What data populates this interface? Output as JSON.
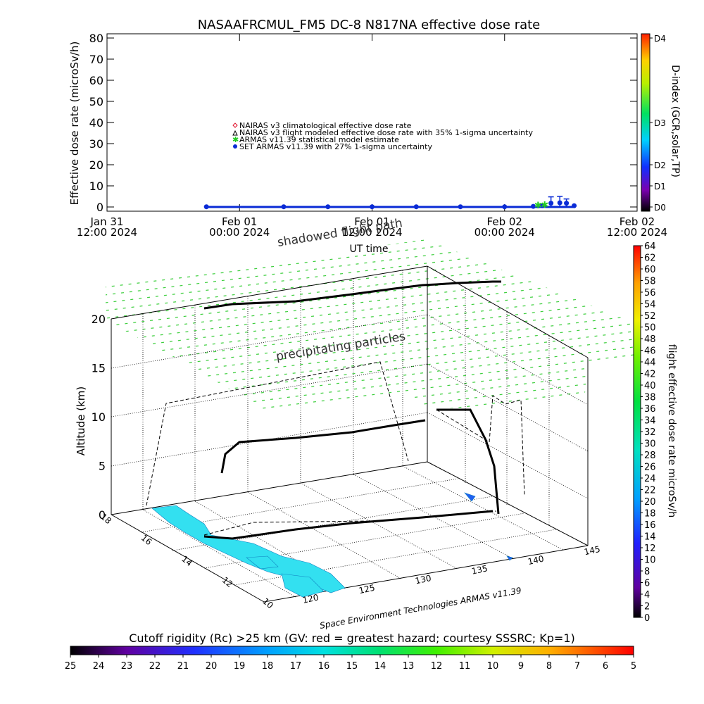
{
  "title": "NASAAFRCMUL_FM5 DC-8   N817NA effective dose rate",
  "chart_data": [
    {
      "type": "scatter",
      "panel": "time-series",
      "ylabel": "Effective dose rate (microSv/h)",
      "xlabel": "UT time",
      "ylim": [
        -2,
        82
      ],
      "yticks": [
        0,
        10,
        20,
        30,
        40,
        50,
        60,
        70,
        80
      ],
      "xticks": [
        {
          "line1": "Jan 31",
          "line2": "12:00 2024"
        },
        {
          "line1": "Feb 01",
          "line2": "00:00 2024"
        },
        {
          "line1": "Feb 01",
          "line2": "12:00 2024"
        },
        {
          "line1": "Feb 02",
          "line2": "00:00 2024"
        },
        {
          "line1": "Feb 02",
          "line2": "12:00 2024"
        }
      ],
      "xrange_hours": [
        0,
        48
      ],
      "grid": false,
      "legend": [
        {
          "label": "NAIRAS v3 climatological effective dose rate",
          "color": "#e0102a",
          "marker": "diamond"
        },
        {
          "label": "NAIRAS v3 flight modeled effective dose rate with 35% 1-sigma uncertainty",
          "color": "#000000",
          "marker": "triangle"
        },
        {
          "label": "ARMAS v11.39 statistical model estimate",
          "color": "#22cc22",
          "marker": "asterisk"
        },
        {
          "label": "SET ARMAS v11.39 with 27% 1-sigma uncertainty",
          "color": "#0a2bd6",
          "marker": "circle"
        }
      ],
      "series": [
        {
          "name": "SET ARMAS v11.39 with 27% 1-sigma uncertainty",
          "x_hours": [
            9,
            16,
            20,
            24,
            28,
            32,
            36,
            38.6,
            39.4,
            40.2,
            41.0,
            41.6,
            42.3
          ],
          "y": [
            0.1,
            0.1,
            0.1,
            0.1,
            0.1,
            0.1,
            0.1,
            0.3,
            0.6,
            1.8,
            2.0,
            1.8,
            0.6
          ],
          "yerr": [
            0.05,
            0.05,
            0.05,
            0.05,
            0.05,
            0.05,
            0.05,
            0.2,
            0.3,
            3.0,
            3.0,
            2.0,
            0.5
          ]
        },
        {
          "name": "ARMAS v11.39 statistical model estimate",
          "x_hours": [
            39.0,
            39.6
          ],
          "y": [
            1.0,
            1.2
          ]
        }
      ],
      "right_axis": {
        "label": "D-index (GCR,solar,TP)",
        "ticks": [
          {
            "label": "D0",
            "value": 0
          },
          {
            "label": "D1",
            "value": 10
          },
          {
            "label": "D2",
            "value": 20
          },
          {
            "label": "D3",
            "value": 40
          },
          {
            "label": "D4",
            "value": 80
          }
        ]
      }
    },
    {
      "type": "scatter",
      "panel": "3d-flight-path",
      "zlabel": "Altitude (km)",
      "zticks": [
        0,
        5,
        10,
        15,
        20
      ],
      "lat_ticks": [
        10,
        12,
        14,
        16,
        18
      ],
      "lon_ticks": [
        120,
        125,
        130,
        135,
        140,
        145
      ],
      "annotations": [
        "shadowed flight path",
        "precipitating particles"
      ],
      "colorbar": {
        "label": "flight effective dose rate microSv/h",
        "min": 0,
        "max": 64,
        "ticks": [
          0,
          2,
          4,
          6,
          8,
          10,
          12,
          14,
          16,
          18,
          20,
          22,
          24,
          26,
          28,
          30,
          32,
          34,
          36,
          38,
          40,
          42,
          44,
          46,
          48,
          50,
          52,
          54,
          56,
          58,
          60,
          62,
          64
        ]
      },
      "credit": "Space Environment Technologies ARMAS v11.39"
    },
    {
      "type": "heatmap",
      "panel": "cutoff-rigidity",
      "title": "Cutoff rigidity (Rc) >25 km (GV: red = greatest hazard; courtesy SSSRC; Kp=1)",
      "ticks": [
        25,
        24,
        23,
        22,
        21,
        20,
        19,
        18,
        17,
        16,
        15,
        14,
        13,
        12,
        11,
        10,
        9,
        8,
        7,
        6,
        5
      ]
    }
  ]
}
